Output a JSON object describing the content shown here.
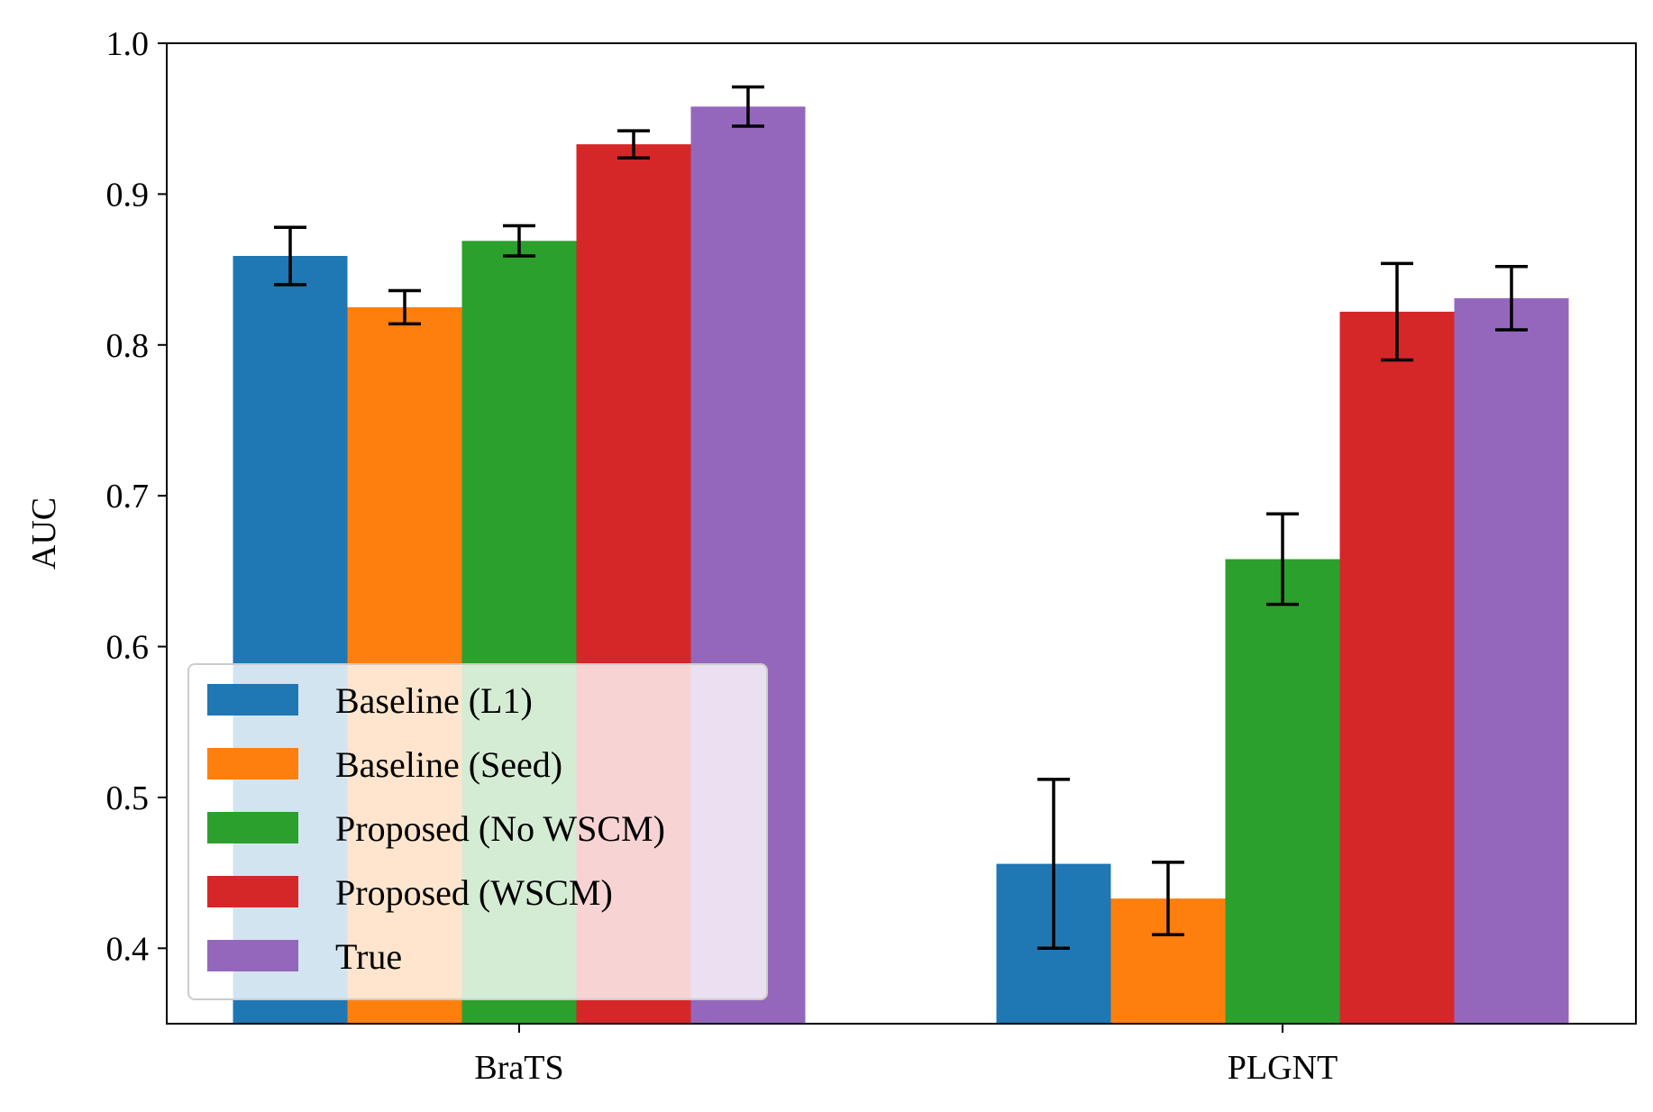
{
  "chart_data": {
    "type": "bar",
    "title": "",
    "xlabel": "",
    "ylabel": "AUC",
    "ylim": [
      0.35,
      1.0
    ],
    "yticks": [
      "0.4",
      "0.5",
      "0.6",
      "0.7",
      "0.8",
      "0.9",
      "1.0"
    ],
    "categories": [
      "BraTS",
      "PLGNT"
    ],
    "legend_position": "lower-left",
    "series": [
      {
        "name": "Baseline (L1)",
        "color": "#1f77b4",
        "values": [
          0.859,
          0.456
        ],
        "errors": [
          0.019,
          0.056
        ]
      },
      {
        "name": "Baseline (Seed)",
        "color": "#ff7f0e",
        "values": [
          0.825,
          0.433
        ],
        "errors": [
          0.011,
          0.024
        ]
      },
      {
        "name": "Proposed (No WSCM)",
        "color": "#2ca02c",
        "values": [
          0.869,
          0.658
        ],
        "errors": [
          0.01,
          0.03
        ]
      },
      {
        "name": "Proposed (WSCM)",
        "color": "#d62728",
        "values": [
          0.933,
          0.822
        ],
        "errors": [
          0.009,
          0.032
        ]
      },
      {
        "name": "True",
        "color": "#9467bd",
        "values": [
          0.958,
          0.831
        ],
        "errors": [
          0.013,
          0.021
        ]
      }
    ]
  }
}
